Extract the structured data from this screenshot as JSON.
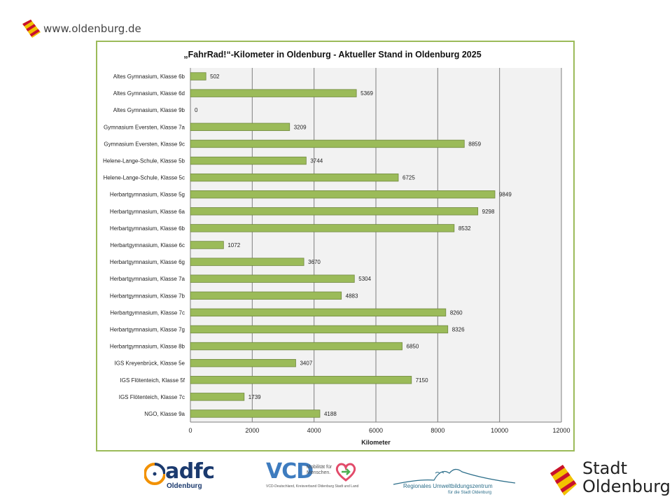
{
  "header": {
    "url": "www.oldenburg.de"
  },
  "chart_data": {
    "type": "bar",
    "orientation": "horizontal",
    "title": "„FahrRad!“-Kilometer in Oldenburg - Aktueller Stand in Oldenburg 2025",
    "xlabel": "Kilometer",
    "ylabel": "",
    "xlim": [
      0,
      12000
    ],
    "xticks": [
      "0",
      "2000",
      "4000",
      "6000",
      "8000",
      "10000",
      "12000"
    ],
    "tick_values": [
      0,
      2000,
      4000,
      6000,
      8000,
      10000,
      12000
    ],
    "grid": true,
    "bar_color": "#9bbb59",
    "categories": [
      "Altes Gymnasium, Klasse 6b",
      "Altes Gymnasium, Klasse 6d",
      "Altes Gymnasium, Klasse 9b",
      "Gymnasium Eversten, Klasse 7a",
      "Gymnasium Eversten, Klasse 9c",
      "Helene-Lange-Schule, Klasse 5b",
      "Helene-Lange-Schule, Klasse 5c",
      "Herbartgymnasium, Klasse 5g",
      "Herbartgymnasium, Klasse 6a",
      "Herbartgymnasium, Klasse 6b",
      "Herbartgymnasium, Klasse 6c",
      "Herbartgymnasium, Klasse 6g",
      "Herbartgymnasium, Klasse 7a",
      "Herbartgymnasium, Klasse 7b",
      "Herbartgymnasium, Klasse 7c",
      "Herbartgymnasium, Klasse 7g",
      "Herbartgymnasium, Klasse 8b",
      "IGS Kreyenbrück, Klasse 5e",
      "IGS Flötenteich, Klasse 5f",
      "IGS Flötenteich, Klasse 7c",
      "NGO, Klasse 9a"
    ],
    "values": [
      502,
      5369,
      0,
      3209,
      8859,
      3744,
      6725,
      9849,
      9298,
      8532,
      1072,
      3670,
      5304,
      4883,
      8260,
      8326,
      6850,
      3407,
      7150,
      1739,
      4188
    ]
  },
  "footer": {
    "adfc_name": "adfc",
    "adfc_sub": "Oldenburg",
    "vcd_name": "VCD",
    "vcd_tagline": "Mobilität für Menschen.",
    "vcd_sub": "VCD-Deutschland, Kreisverband Oldenburg Stadt und Land",
    "ruz_name": "Regionales Umweltbildungszentrum",
    "ruz_sub": "für die Stadt Oldenburg",
    "stadt_line1": "Stadt",
    "stadt_line2": "Oldenburg"
  }
}
